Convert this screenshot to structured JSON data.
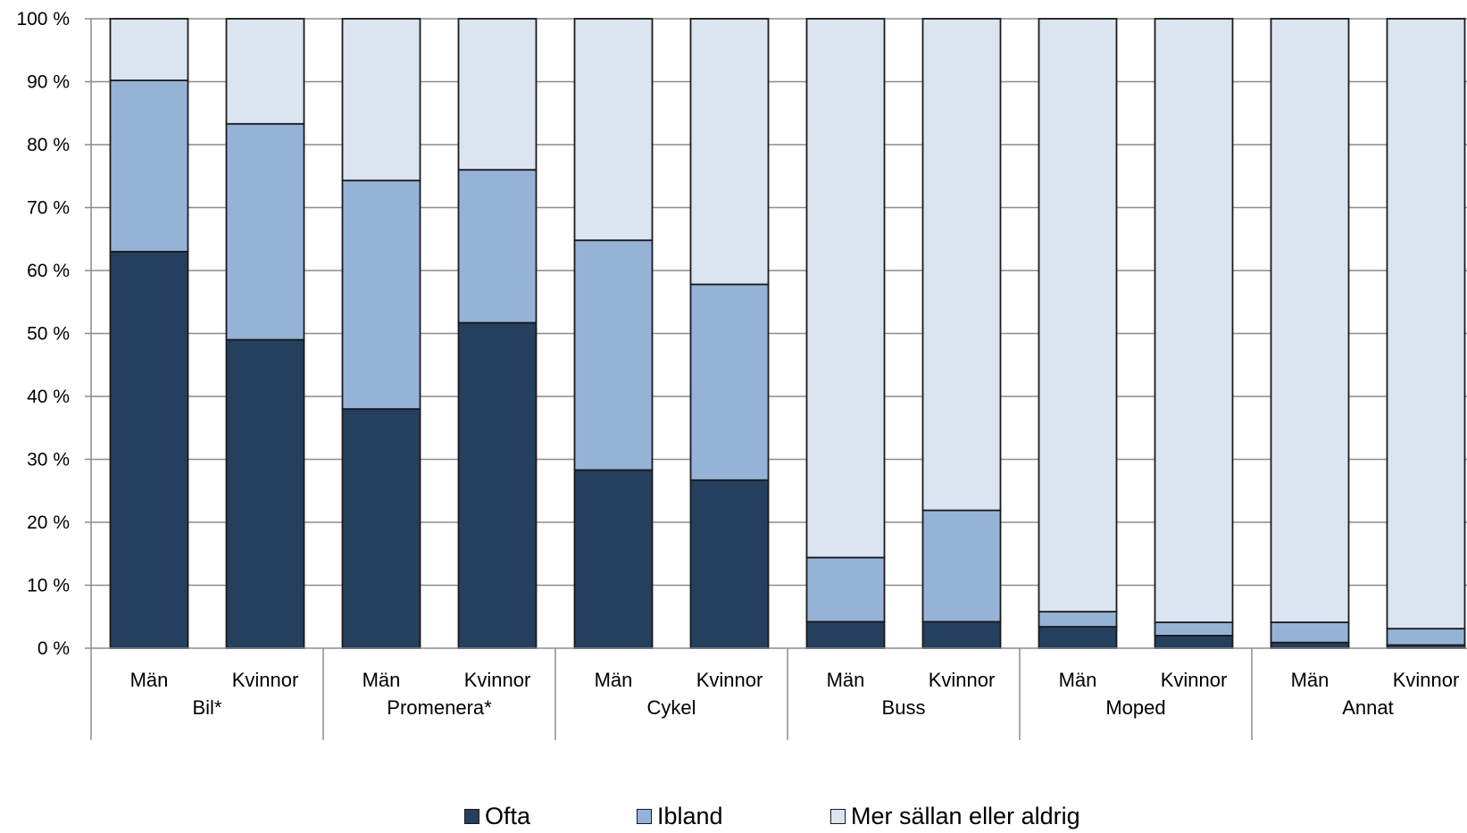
{
  "chart_data": {
    "type": "bar",
    "stacked": true,
    "title": "",
    "xlabel": "",
    "ylabel": "",
    "ylim": [
      0,
      100
    ],
    "y_ticks": [
      "0 %",
      "10 %",
      "20 %",
      "30 %",
      "40 %",
      "50 %",
      "60 %",
      "70 %",
      "80 %",
      "90 %",
      "100 %"
    ],
    "grid": true,
    "legend_position": "bottom",
    "groups": [
      {
        "label": "Bil*",
        "categories": [
          "Män",
          "Kvinnor"
        ]
      },
      {
        "label": "Promenera*",
        "categories": [
          "Män",
          "Kvinnor"
        ]
      },
      {
        "label": "Cykel",
        "categories": [
          "Män",
          "Kvinnor"
        ]
      },
      {
        "label": "Buss",
        "categories": [
          "Män",
          "Kvinnor"
        ]
      },
      {
        "label": "Moped",
        "categories": [
          "Män",
          "Kvinnor"
        ]
      },
      {
        "label": "Annat",
        "categories": [
          "Män",
          "Kvinnor"
        ]
      }
    ],
    "series": [
      {
        "name": "Ofta",
        "color": "#253f5f",
        "values": [
          63,
          49,
          38,
          51.7,
          28.3,
          26.7,
          4.2,
          4.2,
          3.4,
          2,
          0.9,
          0.5
        ]
      },
      {
        "name": "Ibland",
        "color": "#94b3d7",
        "values": [
          27.2,
          34.3,
          36.3,
          24.3,
          36.5,
          31.1,
          10.2,
          17.7,
          2.4,
          2.1,
          3.2,
          2.6
        ]
      },
      {
        "name": "Mer sällan eller aldrig",
        "color": "#dbe5f1",
        "values": [
          9.8,
          16.7,
          25.7,
          24,
          35.2,
          42.2,
          85.6,
          78.1,
          94.2,
          95.9,
          95.9,
          96.9
        ]
      }
    ]
  }
}
